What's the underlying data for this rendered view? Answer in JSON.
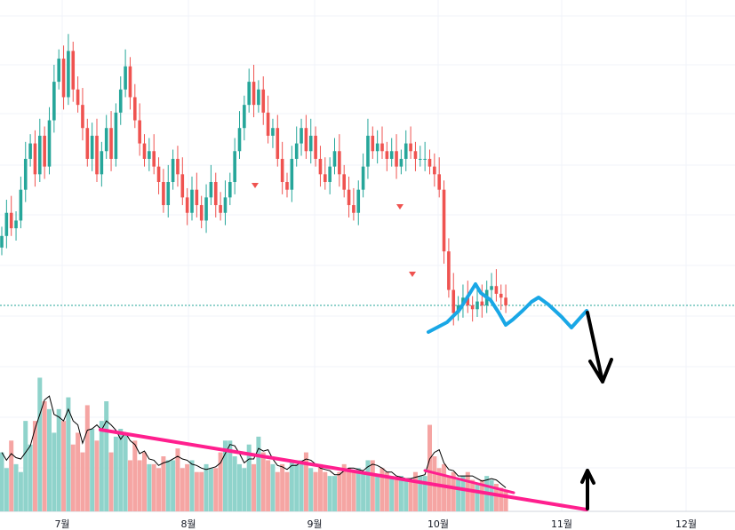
{
  "chart_data": {
    "type": "candlestick",
    "title": "",
    "xlabel": "",
    "ylabel": "",
    "x_ticks": [
      {
        "label": "7월",
        "index": 0
      },
      {
        "label": "8월",
        "index": 1
      },
      {
        "label": "9월",
        "index": 2
      },
      {
        "label": "10월",
        "index": 3
      },
      {
        "label": "11월",
        "index": 4
      },
      {
        "label": "12월",
        "index": 5
      }
    ],
    "price_closes": [
      2.2,
      2.5,
      2.3,
      2.4,
      2.8,
      3.2,
      3.4,
      3.0,
      3.5,
      3.1,
      3.7,
      4.2,
      4.5,
      4.0,
      4.6,
      4.1,
      3.9,
      3.6,
      3.2,
      3.5,
      3.0,
      3.3,
      3.6,
      3.2,
      3.8,
      4.1,
      4.4,
      4.0,
      3.7,
      3.4,
      3.2,
      3.3,
      3.1,
      2.9,
      2.6,
      2.9,
      3.2,
      3.0,
      2.7,
      2.5,
      2.8,
      2.6,
      2.4,
      2.7,
      2.9,
      2.6,
      2.5,
      2.7,
      2.9,
      3.3,
      3.6,
      3.9,
      4.2,
      3.9,
      4.1,
      3.8,
      3.5,
      3.6,
      3.2,
      2.9,
      2.8,
      3.2,
      3.4,
      3.6,
      3.3,
      3.5,
      3.2,
      3.0,
      2.9,
      3.1,
      3.3,
      3.0,
      2.8,
      2.6,
      2.5,
      2.8,
      3.1,
      3.5,
      3.3,
      3.4,
      3.3,
      3.2,
      3.3,
      3.1,
      3.2,
      3.4,
      3.3,
      3.2,
      3.2,
      3.2,
      3.1,
      3.0,
      2.8,
      2.0,
      1.5,
      1.2,
      1.3,
      1.4,
      1.3,
      1.25,
      1.35,
      1.3,
      1.5,
      1.55,
      1.45,
      1.4,
      1.3
    ],
    "volumes": [
      3,
      2.2,
      3.6,
      2.4,
      2.0,
      4.6,
      3.4,
      4.6,
      6.8,
      5.6,
      5.2,
      4.0,
      5.2,
      4.6,
      5.8,
      3.4,
      4.0,
      3.0,
      5.4,
      4.2,
      3.6,
      4.6,
      5.6,
      3.0,
      3.8,
      4.2,
      4.0,
      2.6,
      3.6,
      2.6,
      3.0,
      2.4,
      2.4,
      2.2,
      2.8,
      2.6,
      2.6,
      3.2,
      2.2,
      2.4,
      2.6,
      2.0,
      2.0,
      2.4,
      2.2,
      2.2,
      3.0,
      3.6,
      3.6,
      2.8,
      2.4,
      2.2,
      3.4,
      2.4,
      3.8,
      3.0,
      2.6,
      2.4,
      2.0,
      2.4,
      2.0,
      2.6,
      2.4,
      2.6,
      3.0,
      2.2,
      2.0,
      2.4,
      2.0,
      1.8,
      1.8,
      2.0,
      2.4,
      2.2,
      2.0,
      2.2,
      2.0,
      2.6,
      2.6,
      1.8,
      2.2,
      2.0,
      1.8,
      1.6,
      1.8,
      1.6,
      1.6,
      2.0,
      1.8,
      1.8,
      4.4,
      2.8,
      2.2,
      2.4,
      1.8,
      2.0,
      1.6,
      1.8,
      2.0,
      1.6,
      1.4,
      1.6,
      1.8,
      1.6,
      1.4,
      1.2,
      1.0
    ],
    "current_price_line": 1.3,
    "annotations": {
      "volume_trendline_long": {
        "color": "#ff1f8e"
      },
      "volume_trendline_short": {
        "color": "#ff1f8e"
      },
      "projection_path": {
        "color": "#19a7e6"
      },
      "down_arrow": {
        "color": "#000000"
      },
      "up_arrow": {
        "color": "#000000"
      }
    },
    "colors": {
      "up": "#26a69a",
      "down": "#ef5350",
      "up_volume": "#8fd3cb",
      "down_volume": "#f5a5a3",
      "grid": "#f0f3fa",
      "price_line": "#26a69a",
      "volume_ma": "#000000"
    },
    "grid": true
  }
}
